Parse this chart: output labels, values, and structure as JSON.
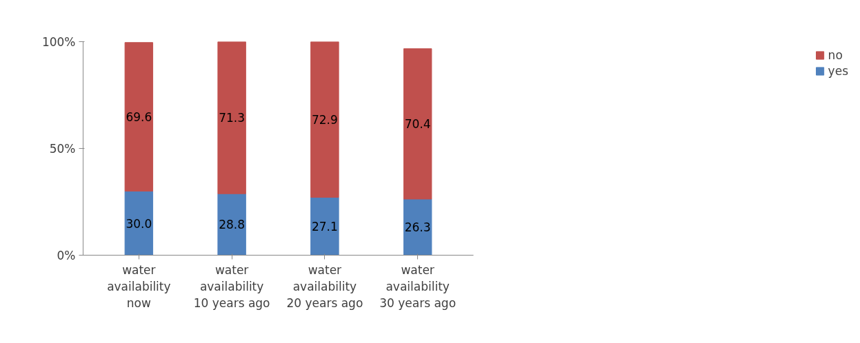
{
  "chart_data": {
    "type": "bar",
    "stacked": true,
    "categories": [
      "water availability now",
      "water availability 10 years ago",
      "water availability 20 years ago",
      "water availability 30 years ago"
    ],
    "series": [
      {
        "name": "yes",
        "color": "#4f81bd",
        "values": [
          30.0,
          28.8,
          27.1,
          26.3
        ],
        "value_labels": [
          "30.0",
          "28.8",
          "27.1",
          "26.3"
        ]
      },
      {
        "name": "no",
        "color": "#c0504d",
        "values": [
          69.6,
          71.3,
          72.9,
          70.4
        ],
        "value_labels": [
          "69.6",
          "71.3",
          "72.9",
          "70.4"
        ]
      }
    ],
    "ylim": [
      0,
      100
    ],
    "yticks": [
      {
        "value": 0,
        "label": "0%"
      },
      {
        "value": 50,
        "label": "50%"
      },
      {
        "value": 100,
        "label": "100%"
      }
    ],
    "grid": false,
    "legend": "right"
  }
}
